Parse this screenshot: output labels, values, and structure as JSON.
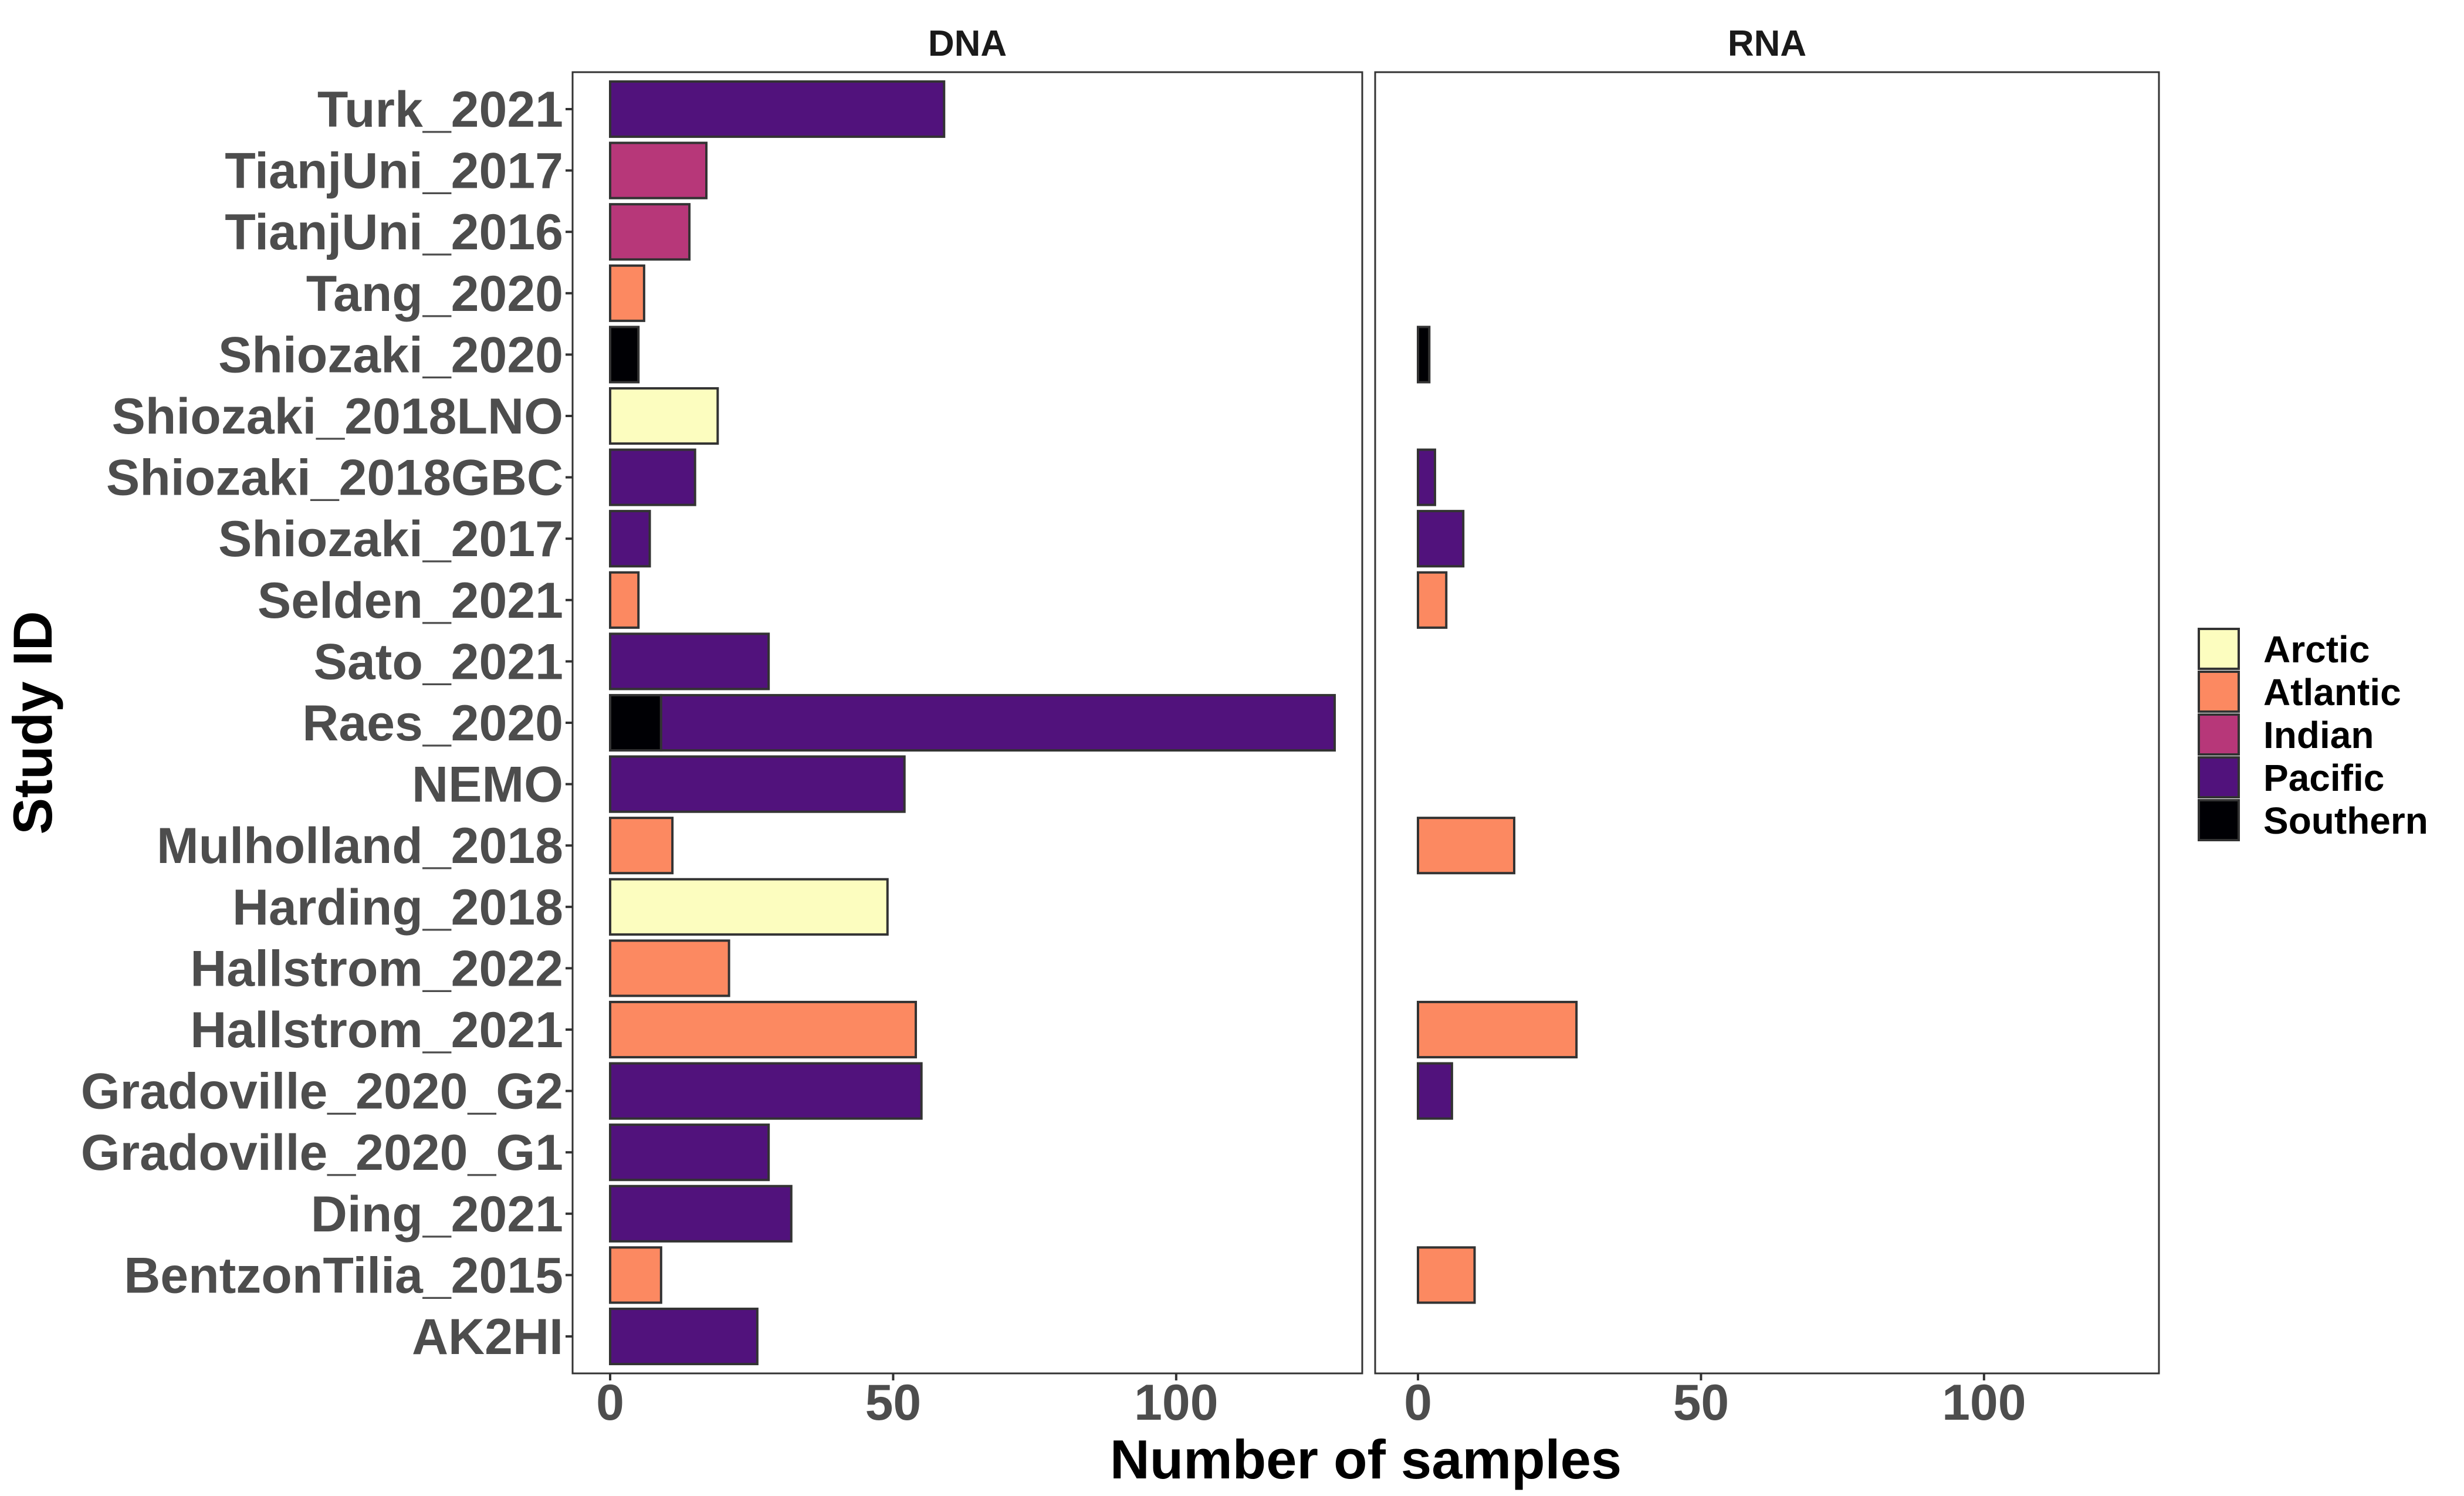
{
  "chart_data": {
    "type": "bar",
    "orientation": "horizontal",
    "stacked": true,
    "xlabel": "Number of samples",
    "ylabel": "Study ID",
    "xlim": [
      0,
      130
    ],
    "x_ticks": [
      "0",
      "50",
      "100"
    ],
    "x_tick_values": [
      0,
      50,
      100
    ],
    "grid": false,
    "legend_position": "right",
    "facets": [
      "DNA",
      "RNA"
    ],
    "categories": [
      "Turk_2021",
      "TianjUni_2017",
      "TianjUni_2016",
      "Tang_2020",
      "Shiozaki_2020",
      "Shiozaki_2018LNO",
      "Shiozaki_2018GBC",
      "Shiozaki_2017",
      "Selden_2021",
      "Sato_2021",
      "Raes_2020",
      "NEMO",
      "Mulholland_2018",
      "Harding_2018",
      "Hallstrom_2022",
      "Hallstrom_2021",
      "Gradoville_2020_G2",
      "Gradoville_2020_G1",
      "Ding_2021",
      "BentzonTilia_2015",
      "AK2HI"
    ],
    "legend": [
      {
        "name": "Arctic",
        "color": "#FCFDBF"
      },
      {
        "name": "Atlantic",
        "color": "#FC8961"
      },
      {
        "name": "Indian",
        "color": "#B73779"
      },
      {
        "name": "Pacific",
        "color": "#51127C"
      },
      {
        "name": "Southern",
        "color": "#000004"
      }
    ],
    "series": [
      {
        "facet": "DNA",
        "bars": [
          {
            "study": "Turk_2021",
            "ocean": "Pacific",
            "value": 59
          },
          {
            "study": "TianjUni_2017",
            "ocean": "Indian",
            "value": 17
          },
          {
            "study": "TianjUni_2016",
            "ocean": "Indian",
            "value": 14
          },
          {
            "study": "Tang_2020",
            "ocean": "Atlantic",
            "value": 6
          },
          {
            "study": "Shiozaki_2020",
            "ocean": "Southern",
            "value": 5
          },
          {
            "study": "Shiozaki_2018LNO",
            "ocean": "Arctic",
            "value": 19
          },
          {
            "study": "Shiozaki_2018GBC",
            "ocean": "Pacific",
            "value": 15
          },
          {
            "study": "Shiozaki_2017",
            "ocean": "Pacific",
            "value": 7
          },
          {
            "study": "Selden_2021",
            "ocean": "Atlantic",
            "value": 5
          },
          {
            "study": "Sato_2021",
            "ocean": "Pacific",
            "value": 28
          },
          {
            "study": "Raes_2020",
            "ocean": "Southern",
            "value": 9
          },
          {
            "study": "Raes_2020",
            "ocean": "Pacific",
            "value": 119
          },
          {
            "study": "NEMO",
            "ocean": "Pacific",
            "value": 52
          },
          {
            "study": "Mulholland_2018",
            "ocean": "Atlantic",
            "value": 11
          },
          {
            "study": "Harding_2018",
            "ocean": "Arctic",
            "value": 49
          },
          {
            "study": "Hallstrom_2022",
            "ocean": "Atlantic",
            "value": 21
          },
          {
            "study": "Hallstrom_2021",
            "ocean": "Atlantic",
            "value": 54
          },
          {
            "study": "Gradoville_2020_G2",
            "ocean": "Pacific",
            "value": 55
          },
          {
            "study": "Gradoville_2020_G1",
            "ocean": "Pacific",
            "value": 28
          },
          {
            "study": "Ding_2021",
            "ocean": "Pacific",
            "value": 32
          },
          {
            "study": "BentzonTilia_2015",
            "ocean": "Atlantic",
            "value": 9
          },
          {
            "study": "AK2HI",
            "ocean": "Pacific",
            "value": 26
          }
        ]
      },
      {
        "facet": "RNA",
        "bars": [
          {
            "study": "Shiozaki_2020",
            "ocean": "Southern",
            "value": 2
          },
          {
            "study": "Shiozaki_2018GBC",
            "ocean": "Pacific",
            "value": 3
          },
          {
            "study": "Shiozaki_2017",
            "ocean": "Pacific",
            "value": 8
          },
          {
            "study": "Selden_2021",
            "ocean": "Atlantic",
            "value": 5
          },
          {
            "study": "Mulholland_2018",
            "ocean": "Atlantic",
            "value": 17
          },
          {
            "study": "Hallstrom_2021",
            "ocean": "Atlantic",
            "value": 28
          },
          {
            "study": "Gradoville_2020_G2",
            "ocean": "Pacific",
            "value": 6
          },
          {
            "study": "BentzonTilia_2015",
            "ocean": "Atlantic",
            "value": 10
          }
        ]
      }
    ]
  }
}
